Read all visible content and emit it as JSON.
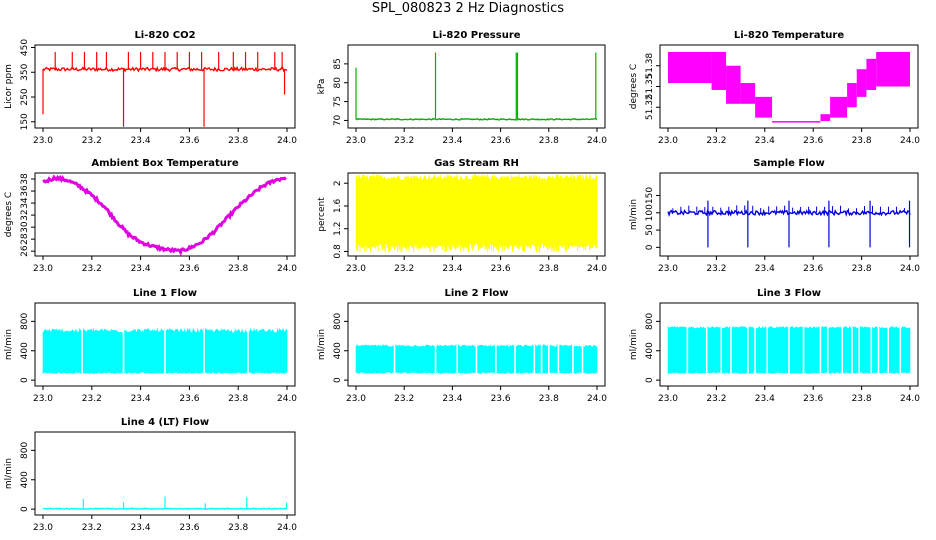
{
  "title": "SPL_080823  2 Hz Diagnostics",
  "chart_data": [
    {
      "id": "p1",
      "type": "line",
      "title": "Li-820 CO2",
      "ylabel": "Licor ppm",
      "color": "#ff0000",
      "xlim": [
        23.0,
        24.0
      ],
      "ylim": [
        125,
        460
      ],
      "xticks": [
        "23.0",
        "23.2",
        "23.4",
        "23.6",
        "23.8",
        "24.0"
      ],
      "yticks": [
        150,
        250,
        350,
        450
      ],
      "series": [
        {
          "baseline": 362,
          "noise": 7,
          "spikes_up": [
            23.05,
            23.12,
            23.17,
            23.22,
            23.26,
            23.35,
            23.4,
            23.45,
            23.5,
            23.55,
            23.6,
            23.65,
            23.72,
            23.78,
            23.83,
            23.88,
            23.95,
            23.98
          ],
          "spike_up_to": 432,
          "spikes_down": [
            23.0,
            23.33,
            23.66,
            23.99
          ],
          "spike_down_to": [
            180,
            130,
            130,
            260
          ]
        }
      ]
    },
    {
      "id": "p2",
      "type": "line",
      "title": "Li-820 Pressure",
      "ylabel": "kPa",
      "color": "#00b000",
      "xlim": [
        23.0,
        24.0
      ],
      "ylim": [
        68,
        90
      ],
      "xticks": [
        "23.0",
        "23.2",
        "23.4",
        "23.6",
        "23.8",
        "24.0"
      ],
      "yticks": [
        70,
        75,
        80,
        85
      ],
      "series": [
        {
          "baseline": 70.3,
          "noise": 0.15,
          "spikes_up": [
            23.0,
            23.33,
            23.665,
            23.67,
            23.995
          ],
          "spike_up_to": [
            84,
            88,
            88,
            88,
            88
          ]
        }
      ]
    },
    {
      "id": "p3",
      "type": "area",
      "title": "Li-820 Temperature",
      "ylabel": "degrees C",
      "color": "#ff00ff",
      "xlim": [
        23.0,
        24.0
      ],
      "ylim": [
        51.29,
        51.41
      ],
      "xticks": [
        "23.0",
        "23.2",
        "23.4",
        "23.6",
        "23.8",
        "24.0"
      ],
      "yticks": [
        51.32,
        51.35,
        51.38
      ],
      "steps": [
        [
          23.0,
          51.355,
          51.4
        ],
        [
          23.18,
          51.345,
          51.4
        ],
        [
          23.24,
          51.325,
          51.38
        ],
        [
          23.3,
          51.325,
          51.355
        ],
        [
          23.36,
          51.305,
          51.335
        ],
        [
          23.43,
          51.3,
          51.3
        ],
        [
          23.63,
          51.3,
          51.31
        ],
        [
          23.67,
          51.305,
          51.335
        ],
        [
          23.74,
          51.32,
          51.355
        ],
        [
          23.78,
          51.335,
          51.375
        ],
        [
          23.82,
          51.345,
          51.39
        ],
        [
          23.86,
          51.35,
          51.4
        ]
      ]
    },
    {
      "id": "p4",
      "type": "line",
      "title": "Ambient Box Temperature",
      "ylabel": "degrees C",
      "color": "#e000e0",
      "xlim": [
        23.0,
        24.0
      ],
      "ylim": [
        25.2,
        39.0
      ],
      "xticks": [
        "23.0",
        "23.2",
        "23.4",
        "23.6",
        "23.8",
        "24.0"
      ],
      "yticks": [
        26,
        28,
        30,
        32,
        34,
        36,
        38
      ],
      "points": [
        [
          23.0,
          37.5
        ],
        [
          23.05,
          38.2
        ],
        [
          23.1,
          37.8
        ],
        [
          23.15,
          36.8
        ],
        [
          23.2,
          35.3
        ],
        [
          23.25,
          33.5
        ],
        [
          23.3,
          31.0
        ],
        [
          23.35,
          28.8
        ],
        [
          23.4,
          27.5
        ],
        [
          23.45,
          26.8
        ],
        [
          23.5,
          26.3
        ],
        [
          23.56,
          26.0
        ],
        [
          23.6,
          26.5
        ],
        [
          23.65,
          27.5
        ],
        [
          23.7,
          29.2
        ],
        [
          23.75,
          31.3
        ],
        [
          23.8,
          33.4
        ],
        [
          23.85,
          35.2
        ],
        [
          23.9,
          36.8
        ],
        [
          23.95,
          37.8
        ],
        [
          24.0,
          38.3
        ]
      ],
      "noise": 0.25
    },
    {
      "id": "p5",
      "type": "area",
      "title": "Gas Stream RH",
      "ylabel": "percent",
      "color": "#ffff00",
      "xlim": [
        23.0,
        24.0
      ],
      "ylim": [
        0.72,
        2.18
      ],
      "xticks": [
        "23.0",
        "23.2",
        "23.4",
        "23.6",
        "23.8",
        "24.0"
      ],
      "yticks": [
        0.8,
        1.2,
        1.6,
        2.0
      ],
      "band": {
        "low": [
          0.85,
          0.95
        ],
        "high": [
          2.05,
          2.15
        ]
      }
    },
    {
      "id": "p6",
      "type": "line",
      "title": "Sample Flow",
      "ylabel": "ml/min",
      "color": "#0000dd",
      "xlim": [
        23.0,
        24.0
      ],
      "ylim": [
        -25,
        215
      ],
      "xticks": [
        "23.0",
        "23.2",
        "23.4",
        "23.6",
        "23.8",
        "24.0"
      ],
      "yticks": [
        0,
        50,
        100,
        150
      ],
      "series": [
        {
          "baseline": 100,
          "noise": 6,
          "spikes_down": [
            23.165,
            23.33,
            23.5,
            23.665,
            23.835,
            23.998
          ],
          "spike_down_to": 0,
          "spike_up_to": 135
        }
      ]
    },
    {
      "id": "p7",
      "type": "area",
      "title": "Line 1 Flow",
      "ylabel": "ml/min",
      "color": "#00ffff",
      "xlim": [
        23.0,
        24.0
      ],
      "ylim": [
        -80,
        1050
      ],
      "xticks": [
        "23.0",
        "23.2",
        "23.4",
        "23.6",
        "23.8",
        "24.0"
      ],
      "yticks": [
        0,
        400,
        800
      ],
      "band": {
        "low": [
          90,
          110
        ],
        "high": [
          640,
          700
        ]
      },
      "gaps": [
        23.16,
        23.33,
        23.5,
        23.66,
        23.84
      ]
    },
    {
      "id": "p8",
      "type": "area",
      "title": "Line 2 Flow",
      "ylabel": "ml/min",
      "color": "#00ffff",
      "xlim": [
        23.0,
        24.0
      ],
      "ylim": [
        -80,
        1050
      ],
      "xticks": [
        "23.0",
        "23.2",
        "23.4",
        "23.6",
        "23.8",
        "24.0"
      ],
      "yticks": [
        0,
        400,
        800
      ],
      "band": {
        "low": [
          90,
          110
        ],
        "high": [
          450,
          480
        ]
      },
      "gaps": [
        23.16,
        23.33,
        23.42,
        23.5,
        23.58,
        23.66,
        23.74,
        23.77,
        23.8,
        23.84,
        23.9,
        23.94
      ]
    },
    {
      "id": "p9",
      "type": "area",
      "title": "Line 3 Flow",
      "ylabel": "ml/min",
      "color": "#00ffff",
      "xlim": [
        23.0,
        24.0
      ],
      "ylim": [
        -80,
        1050
      ],
      "xticks": [
        "23.0",
        "23.2",
        "23.4",
        "23.6",
        "23.8",
        "24.0"
      ],
      "yticks": [
        0,
        400,
        800
      ],
      "band": {
        "low": [
          90,
          110
        ],
        "high": [
          700,
          730
        ]
      },
      "gaps": [
        23.08,
        23.16,
        23.22,
        23.26,
        23.33,
        23.36,
        23.41,
        23.5,
        23.56,
        23.63,
        23.66,
        23.72,
        23.76,
        23.79,
        23.84,
        23.87,
        23.91,
        23.96
      ]
    },
    {
      "id": "p10",
      "type": "line",
      "title": "Line 4 (LT) Flow",
      "ylabel": "ml/min",
      "color": "#00ffff",
      "xlim": [
        23.0,
        24.0
      ],
      "ylim": [
        -80,
        1050
      ],
      "xticks": [
        "23.0",
        "23.2",
        "23.4",
        "23.6",
        "23.8",
        "24.0"
      ],
      "yticks": [
        0,
        400,
        800
      ],
      "series": [
        {
          "baseline": 5,
          "noise": 6,
          "spikes_up": [
            23.165,
            23.33,
            23.5,
            23.665,
            23.835,
            23.998
          ],
          "spike_up_to": [
            140,
            95,
            170,
            80,
            160,
            90
          ]
        }
      ]
    }
  ]
}
